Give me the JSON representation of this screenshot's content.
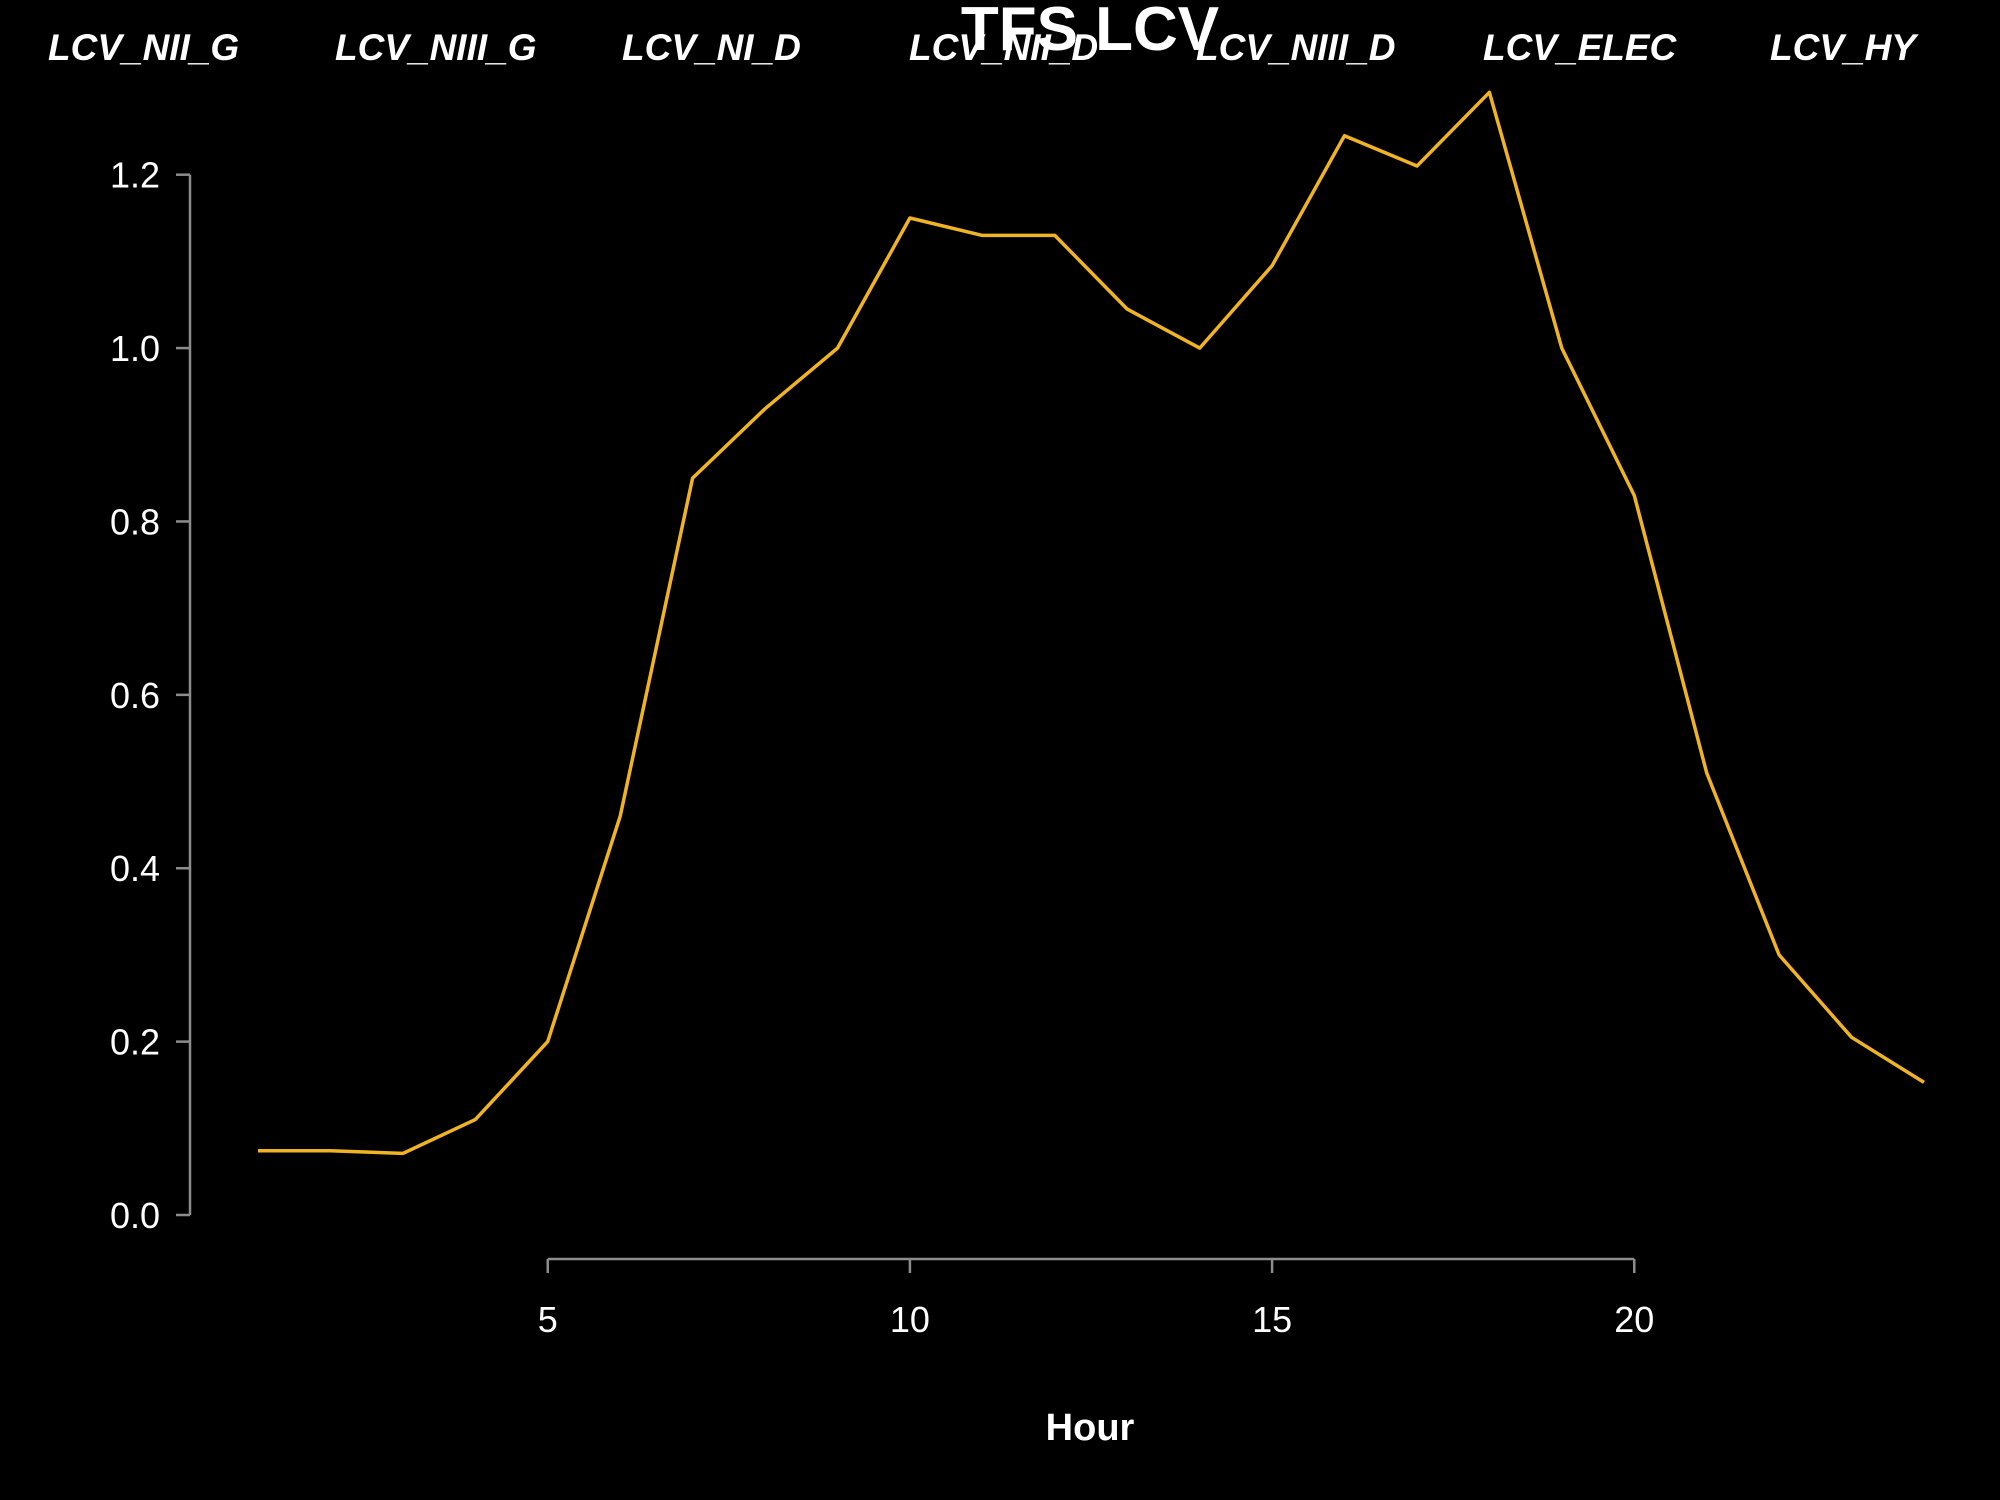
{
  "chart_data": {
    "type": "line",
    "title": "TFS LCV",
    "xlabel": "Hour",
    "ylabel": "",
    "xlim": [
      1,
      24
    ],
    "ylim": [
      0,
      1.3
    ],
    "xticks": [
      5,
      10,
      15,
      20
    ],
    "xtick_labels": [
      "5",
      "10",
      "15",
      "20"
    ],
    "yticks": [
      0.0,
      0.2,
      0.4,
      0.6,
      0.8,
      1.0,
      1.2
    ],
    "ytick_labels": [
      "0.0",
      "0.2",
      "0.4",
      "0.6",
      "0.8",
      "1.0",
      "1.2"
    ],
    "grid": false,
    "legend_placement": "top",
    "legend_entries": [
      "LCV_NII_G",
      "LCV_NIII_G",
      "LCV_NI_D",
      "LCV_NII_D",
      "LCV_NIII_D",
      "LCV_ELEC",
      "LCV_HY"
    ],
    "series": [
      {
        "color": "#f0b323",
        "x": [
          1,
          2,
          3,
          4,
          5,
          6,
          7,
          8,
          9,
          10,
          11,
          12,
          13,
          14,
          15,
          16,
          17,
          18,
          19,
          20,
          21,
          22,
          23,
          24
        ],
        "values": [
          0.074,
          0.074,
          0.071,
          0.11,
          0.2,
          0.46,
          0.85,
          0.93,
          1.0,
          1.15,
          1.13,
          1.13,
          1.045,
          1.0,
          1.095,
          1.245,
          1.21,
          1.295,
          1.0,
          0.83,
          0.51,
          0.3,
          0.205,
          0.153
        ]
      }
    ]
  }
}
